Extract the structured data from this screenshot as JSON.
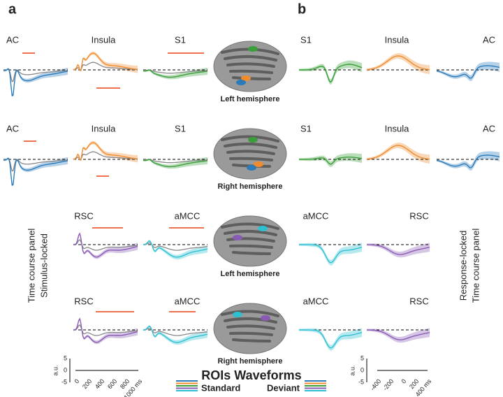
{
  "panel_a": {
    "label": "a",
    "side_title": [
      "Time course panel",
      "Stimulus-locked"
    ],
    "rows": [
      [
        "AC",
        "Insula",
        "S1"
      ],
      [
        "AC",
        "Insula",
        "S1"
      ],
      [
        "RSC",
        "aMCC"
      ],
      [
        "RSC",
        "aMCC"
      ]
    ]
  },
  "brains": [
    "Left hemisphere",
    "Right hemisphere",
    "Left hemisphere",
    "Right hemisphere"
  ],
  "panel_b": {
    "label": "b",
    "side_title": [
      "Response-locked",
      "Time course panel"
    ],
    "rows": [
      [
        "S1",
        "Insula",
        "AC"
      ],
      [
        "S1",
        "Insula",
        "AC"
      ],
      [
        "aMCC",
        "RSC"
      ],
      [
        "aMCC",
        "RSC"
      ]
    ]
  },
  "scale_a": {
    "y_unit": "a.u.",
    "y_ticks": [
      "5",
      "0",
      "-5"
    ],
    "x_ticks": [
      "0",
      "200",
      "400",
      "600",
      "800",
      "1000 ms"
    ]
  },
  "scale_b": {
    "y_unit": "a.u.",
    "y_ticks": [
      "5",
      "0",
      "-5"
    ],
    "x_ticks": [
      "-400",
      "-200",
      "0",
      "200",
      "400 ms"
    ]
  },
  "legend": {
    "title": "ROIs Waveforms",
    "standard": "Standard",
    "deviant": "Deviant"
  }
}
